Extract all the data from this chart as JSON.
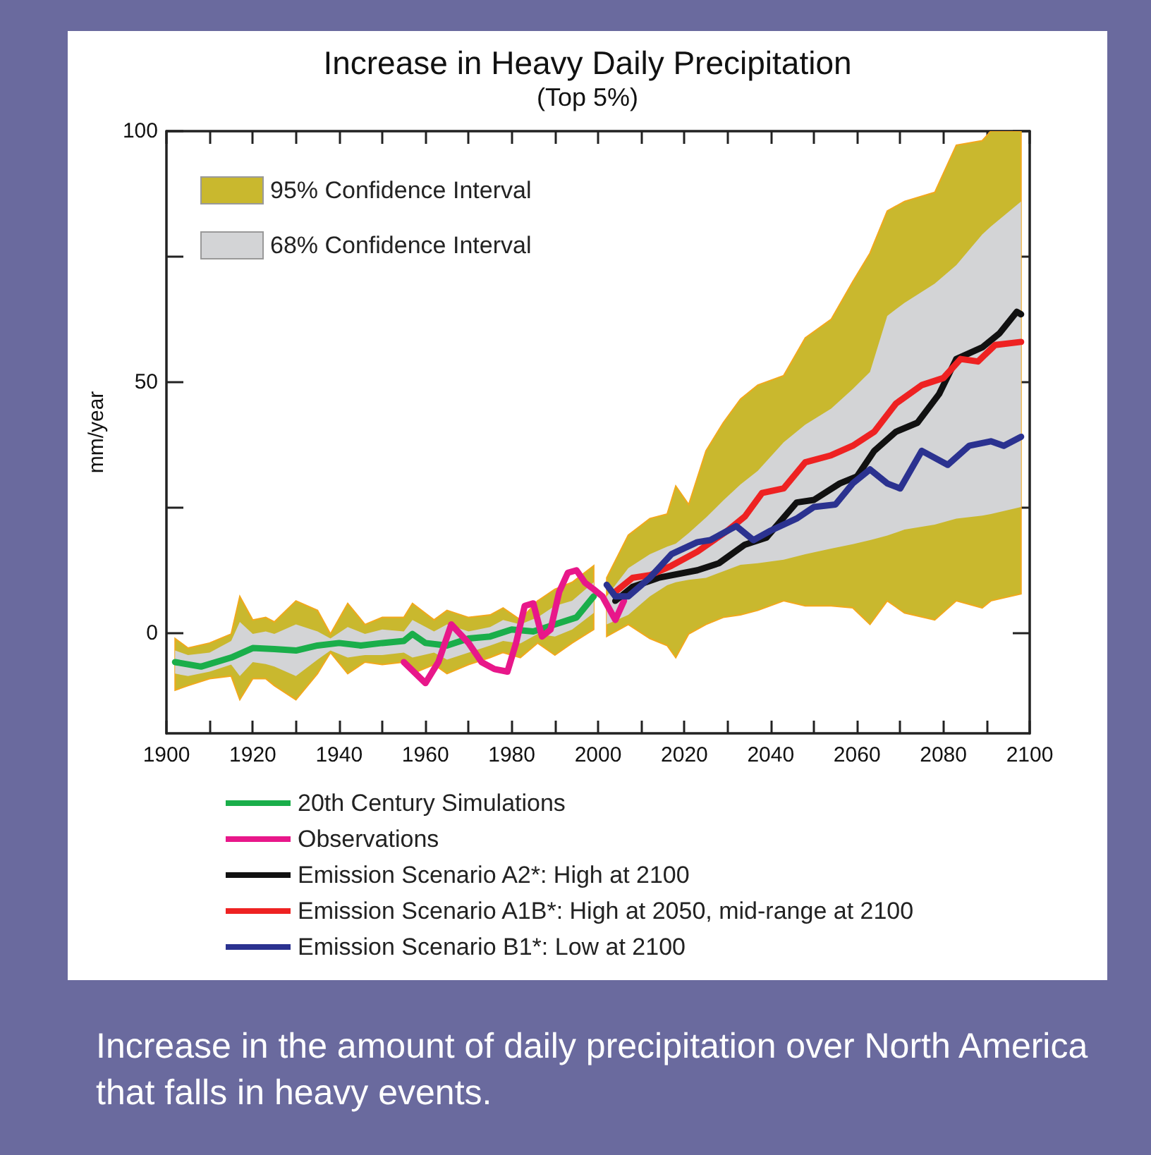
{
  "chart_data": {
    "type": "line",
    "title": "Increase in Heavy Daily Precipitation",
    "subtitle": "(Top 5%)",
    "ylabel": "mm/year",
    "xlim": [
      1900,
      2100
    ],
    "xticks": [
      1900,
      {
        "value": 1910,
        "label": null
      },
      1920,
      {
        "value": 1930,
        "label": null
      },
      1940,
      {
        "value": 1950,
        "label": null
      },
      1960,
      {
        "value": 1970,
        "label": null
      },
      1980,
      {
        "value": 1990,
        "label": null
      },
      2000,
      {
        "value": 2010,
        "label": null
      },
      2020,
      {
        "value": 2030,
        "label": null
      },
      2040,
      {
        "value": 2050,
        "label": null
      },
      2060,
      {
        "value": 2070,
        "label": null
      },
      2080,
      {
        "value": 2090,
        "label": null
      },
      2100
    ],
    "ylim": [
      -20,
      100
    ],
    "yticks": [
      0,
      {
        "value": 25,
        "label": null
      },
      50,
      {
        "value": 75,
        "label": null
      },
      100
    ],
    "grid": false,
    "legend": "bottom left",
    "marker": "none",
    "line_style": "solid",
    "annotations": [
      "Increase in the amount of daily precipitation over North America that falls in heavy events."
    ],
    "series": [
      {
        "name": "95% Confidence Interval",
        "type": "area",
        "color": "#c9b82e",
        "values": [
          null,
          null,
          null,
          null,
          null,
          null,
          null,
          null,
          null,
          null,
          null,
          null,
          null,
          null,
          null,
          null,
          null,
          null,
          null,
          null,
          null,
          null,
          null,
          null,
          null,
          null,
          null,
          null,
          null,
          null,
          null,
          null,
          null,
          null,
          null,
          null,
          null,
          null,
          null,
          null,
          null,
          null,
          null,
          null,
          null,
          null,
          null,
          null,
          null
        ],
        "x": [
          1902,
          1905,
          1910,
          1915,
          1917,
          1920,
          1923,
          1925,
          1930,
          1935,
          1938,
          1942,
          1946,
          1950,
          1955,
          1957,
          1962,
          1965,
          1970,
          1975,
          1978,
          1982,
          1986,
          1990,
          1994,
          1999,
          2000.5,
          2002,
          2007,
          2012,
          2016,
          2018,
          2021,
          2025,
          2029,
          2033,
          2037,
          2043,
          2048,
          2054,
          2059,
          2063,
          2067,
          2071,
          2078,
          2083,
          2089,
          2091,
          2098
        ],
        "upper": [
          -1.1,
          -3,
          -2,
          -0.2,
          7.3,
          2.6,
          3.1,
          2.2,
          6.4,
          4.5,
          -0.2,
          5.9,
          1.7,
          3.1,
          3.1,
          5.9,
          2.6,
          4.5,
          3.1,
          3.6,
          5,
          2.6,
          6.4,
          8.7,
          10.1,
          13.4,
          null,
          11,
          19.5,
          22.8,
          23.7,
          29.3,
          25.6,
          36.3,
          41.9,
          46.6,
          49.4,
          51.3,
          58.8,
          62.5,
          70,
          75.7,
          84.1,
          86,
          87.8,
          97.2,
          98.1,
          100,
          100
        ],
        "lower": [
          -11.4,
          -10.5,
          -9.1,
          -8.6,
          -13.3,
          -9.1,
          -9.1,
          -10.5,
          -13.3,
          -8.1,
          -3.9,
          -8.1,
          -5.8,
          -6.3,
          -5.8,
          -8.1,
          -6.3,
          -8.1,
          -6.3,
          -4.9,
          -3.9,
          -4.9,
          -2,
          -4.4,
          -2,
          0.7,
          null,
          -0.7,
          1.7,
          -1.1,
          -2.5,
          -4.9,
          -0.2,
          1.7,
          3.1,
          3.6,
          4.5,
          6.4,
          5.4,
          5.4,
          5,
          1.7,
          6.4,
          4,
          2.6,
          6.4,
          5,
          6.4,
          7.8
        ]
      },
      {
        "name": "68% Confidence Interval",
        "type": "area",
        "color": "#d3d4d6",
        "values": [
          null,
          null,
          null,
          null,
          null,
          null,
          null,
          null,
          null,
          null,
          null,
          null,
          null,
          null,
          null,
          null,
          null,
          null,
          null,
          null,
          null,
          null,
          null,
          null,
          null,
          null,
          null,
          null,
          null,
          null,
          null,
          null,
          null,
          null,
          null,
          null,
          null,
          null,
          null,
          null,
          null,
          null,
          null,
          null,
          null,
          null,
          null,
          null,
          null
        ],
        "x": [
          1902,
          1905,
          1910,
          1915,
          1917,
          1920,
          1923,
          1925,
          1930,
          1935,
          1938,
          1942,
          1946,
          1950,
          1955,
          1957,
          1962,
          1965,
          1970,
          1975,
          1978,
          1982,
          1986,
          1990,
          1994,
          1999,
          2000.5,
          2002,
          2007,
          2012,
          2016,
          2018,
          2021,
          2025,
          2029,
          2033,
          2037,
          2043,
          2048,
          2054,
          2059,
          2063,
          2067,
          2071,
          2078,
          2083,
          2089,
          2091,
          2098
        ],
        "upper": [
          -3.5,
          -4.4,
          -3.9,
          -1.6,
          2.2,
          -0.2,
          0.3,
          -0.2,
          1.7,
          0.3,
          -1.1,
          1.2,
          -0.2,
          0.7,
          0.3,
          2.6,
          0.3,
          1.7,
          0.3,
          1.2,
          2.6,
          1.7,
          3.1,
          5.4,
          6.4,
          10.1,
          null,
          7.3,
          12.9,
          15.7,
          17.2,
          17.8,
          19.9,
          23,
          26.4,
          29.6,
          32.3,
          38,
          41.5,
          44.7,
          48.6,
          52,
          63.2,
          65.8,
          69.6,
          73.3,
          79.4,
          81,
          86
        ],
        "lower": [
          -8.1,
          -8.6,
          -7.7,
          -6.3,
          -8.6,
          -5.8,
          -6.2,
          -6.7,
          -8.6,
          -5.3,
          -3.5,
          -4.9,
          -4.4,
          -4.4,
          -3.9,
          -4.9,
          -3.9,
          -5.3,
          -3.9,
          -2.5,
          -1.6,
          -2.1,
          -0.2,
          -0.7,
          0.7,
          4,
          null,
          1.7,
          3.6,
          7.3,
          9.5,
          10.1,
          10.6,
          11,
          12.3,
          13.6,
          13.9,
          14.6,
          15.7,
          16.8,
          17.7,
          18.5,
          19.4,
          20.6,
          21.6,
          22.8,
          23.4,
          23.7,
          25.1
        ]
      },
      {
        "name": "20th Century Simulations",
        "color": "#1aae4a",
        "x": [
          1902,
          1908,
          1915,
          1920,
          1925,
          1930,
          1935,
          1940,
          1945,
          1950,
          1955,
          1957,
          1960,
          1965,
          1970,
          1975,
          1980,
          1985,
          1990,
          1995,
          1999
        ],
        "values": [
          -5.8,
          -6.7,
          -4.9,
          -3,
          -3.2,
          -3.5,
          -2.5,
          -2,
          -2.5,
          -2,
          -1.6,
          -0.2,
          -2,
          -2.5,
          -1.1,
          -0.7,
          0.7,
          0.3,
          1.7,
          3.1,
          7.3
        ]
      },
      {
        "name": "Observations",
        "color": "#e8178a",
        "x": [
          1955,
          1960,
          1963,
          1966,
          1970,
          1973,
          1976,
          1979,
          1981,
          1983,
          1985,
          1987,
          1989,
          1991,
          1993,
          1995,
          1997,
          1999,
          2001,
          2004,
          2006
        ],
        "values": [
          -5.8,
          -10,
          -5.8,
          1.7,
          -2,
          -5.8,
          -7.2,
          -7.7,
          -2,
          5.4,
          5.9,
          -0.7,
          0.7,
          8.2,
          12,
          12.5,
          10,
          8.7,
          7.3,
          2.6,
          6.4
        ]
      },
      {
        "name": "Emission Scenario A2*: High at 2100",
        "color": "#111111",
        "x": [
          2004,
          2008,
          2014,
          2023,
          2028,
          2034,
          2039,
          2046,
          2050,
          2056,
          2060,
          2064,
          2069,
          2074,
          2079,
          2083,
          2089,
          2093,
          2097,
          2098
        ],
        "values": [
          6.4,
          9.2,
          11,
          12.5,
          13.9,
          17.6,
          19,
          26,
          26.5,
          29.8,
          31.2,
          36.3,
          40.1,
          41.9,
          47.6,
          54.6,
          56.9,
          59.7,
          64,
          63.5
        ]
      },
      {
        "name": "Emission Scenario A1B*: High at 2050, mid-range at 2100",
        "color": "#ee2222",
        "x": [
          2004,
          2008,
          2012,
          2017,
          2023,
          2030,
          2034,
          2038,
          2043,
          2048,
          2054,
          2059,
          2064,
          2069,
          2075,
          2080,
          2084,
          2088,
          2092,
          2098
        ],
        "values": [
          8.2,
          11,
          11.5,
          13.4,
          16.2,
          20.4,
          23.2,
          27.9,
          28.8,
          34,
          35.4,
          37.3,
          40.1,
          45.7,
          49.4,
          50.8,
          54.6,
          54.1,
          57.4,
          58
        ]
      },
      {
        "name": "Emission Scenario B1*: Low at 2100",
        "color": "#2b3290",
        "x": [
          2002,
          2004,
          2007,
          2012,
          2017,
          2023,
          2026,
          2032,
          2036,
          2040,
          2046,
          2050,
          2055,
          2059,
          2063,
          2067,
          2070,
          2075,
          2081,
          2086,
          2091,
          2094,
          2098
        ],
        "values": [
          9.6,
          7.3,
          7.3,
          11,
          15.7,
          18.1,
          18.5,
          21.3,
          18.5,
          20.4,
          22.8,
          25.1,
          25.6,
          29.8,
          32.6,
          29.8,
          28.8,
          36.3,
          33.5,
          37.3,
          38.2,
          37.3,
          39.1
        ]
      }
    ]
  }
}
